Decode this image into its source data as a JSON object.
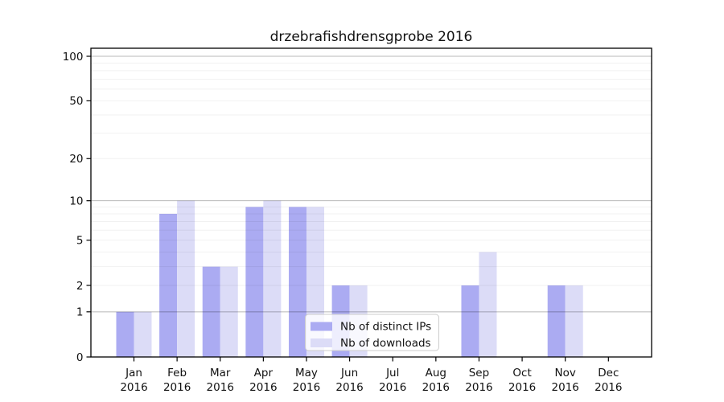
{
  "figure": {
    "title": "drzebrafishdrensgprobe 2016"
  },
  "chart_data": {
    "type": "bar",
    "title": "drzebrafishdrensgprobe 2016",
    "categories": [
      "Jan",
      "Feb",
      "Mar",
      "Apr",
      "May",
      "Jun",
      "Jul",
      "Aug",
      "Sep",
      "Oct",
      "Nov",
      "Dec"
    ],
    "category_year": "2016",
    "series": [
      {
        "name": "Nb of distinct IPs",
        "color": "#ababf2",
        "values": [
          1,
          8,
          3,
          9,
          9,
          2,
          0,
          0,
          2,
          0,
          2,
          0
        ]
      },
      {
        "name": "Nb of downloads",
        "color": "#dcdcf7",
        "values": [
          1,
          10,
          3,
          10,
          9,
          2,
          0,
          0,
          4,
          0,
          2,
          0
        ]
      }
    ],
    "yscale": "log10(1+v)",
    "y_axis": {
      "tick_values": [
        0,
        1,
        2,
        5,
        10,
        20,
        50,
        100
      ],
      "tick_labels": [
        "0",
        "1",
        "2",
        "5",
        "10",
        "20",
        "50",
        "100"
      ],
      "major_grid_values": [
        1,
        10,
        100
      ],
      "minor_grid_values": [
        2,
        3,
        4,
        5,
        6,
        7,
        8,
        9,
        20,
        30,
        40,
        50,
        60,
        70,
        80,
        90
      ],
      "ylim": [
        0,
        113
      ]
    },
    "legend": {
      "location": "lower center",
      "entries": [
        "Nb of distinct IPs",
        "Nb of downloads"
      ]
    },
    "grid": true
  }
}
